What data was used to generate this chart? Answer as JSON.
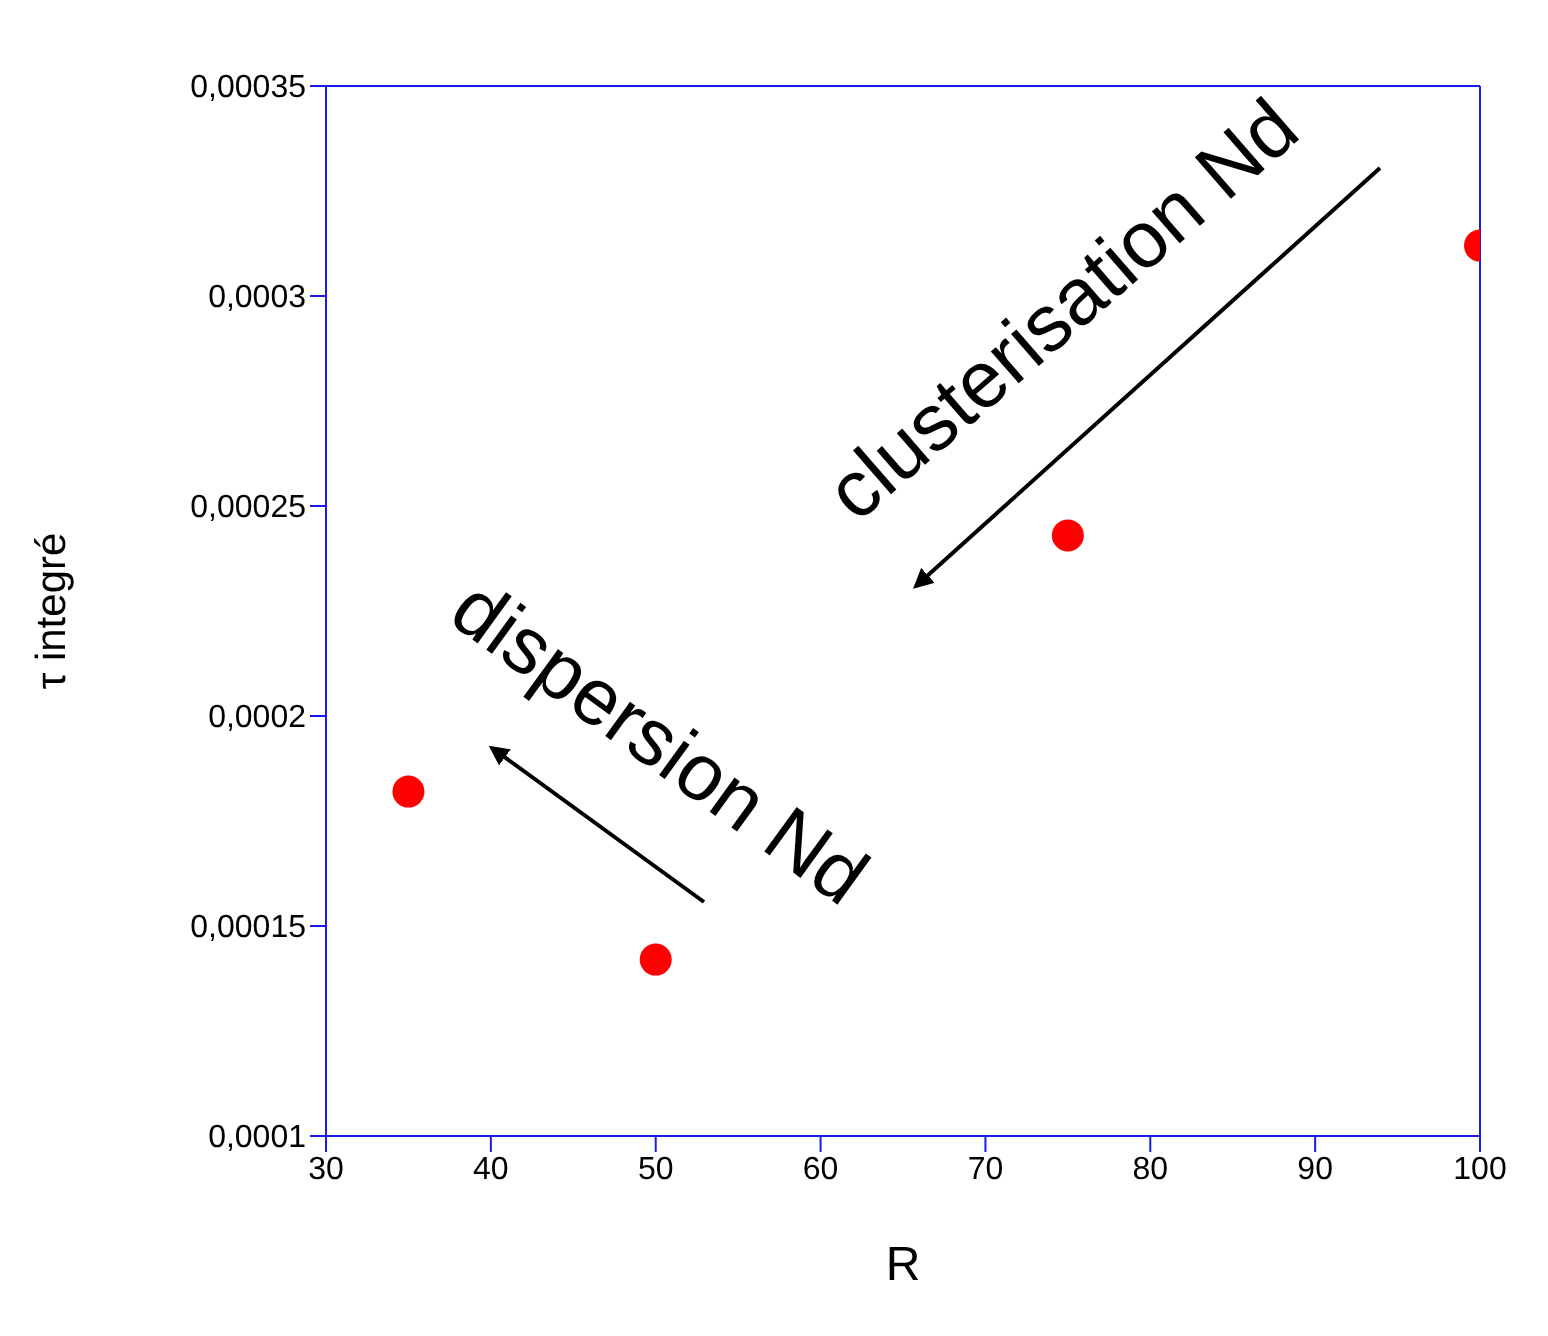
{
  "chart_data": {
    "type": "scatter",
    "xlabel": "R",
    "ylabel": "τ integré",
    "x": [
      35,
      50,
      75,
      100
    ],
    "series": [
      {
        "color": "#ff0000",
        "values": [
          0.000182,
          0.000142,
          0.000243,
          0.000312
        ]
      }
    ],
    "xlim": [
      30,
      100
    ],
    "xticks": [
      30,
      40,
      50,
      60,
      70,
      80,
      90,
      100
    ],
    "ylim": [
      0.0001,
      0.00035
    ],
    "yticks": [
      {
        "value": 0.0001,
        "label": "0,0001"
      },
      {
        "value": 0.00015,
        "label": "0,00015"
      },
      {
        "value": 0.0002,
        "label": "0,0002"
      },
      {
        "value": 0.00025,
        "label": "0,00025"
      },
      {
        "value": 0.0003,
        "label": "0,0003"
      },
      {
        "value": 0.00035,
        "label": "0,00035"
      }
    ],
    "marker": "circle",
    "annotations": [
      "clusterisation Nd",
      "dispersion Nd"
    ]
  }
}
